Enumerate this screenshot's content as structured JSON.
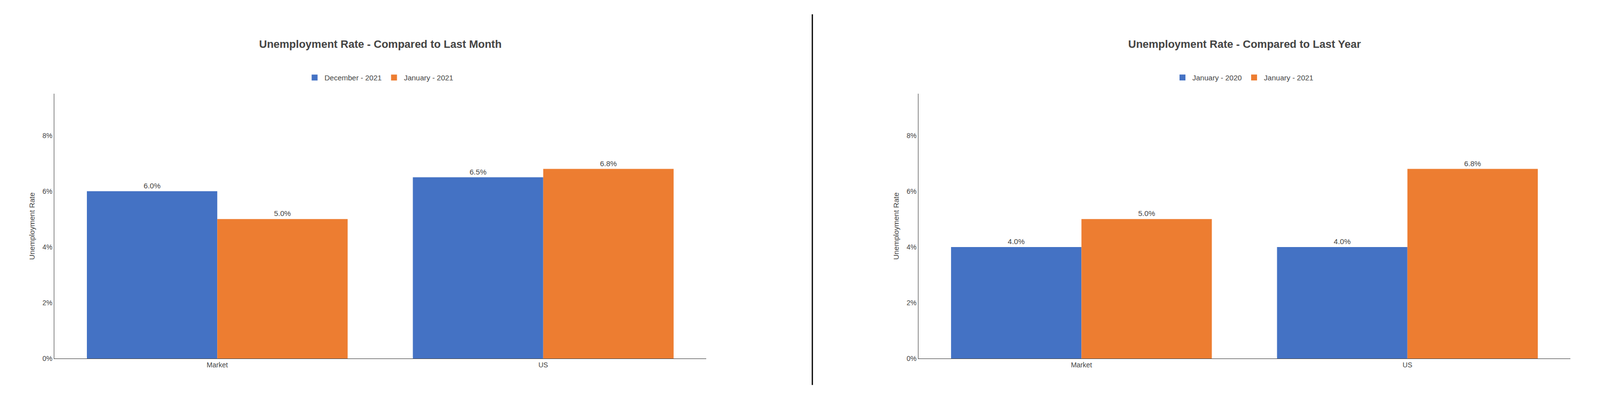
{
  "chart_data": [
    {
      "type": "bar",
      "title": "Unemployment Rate - Compared to Last Month",
      "categories": [
        "Market",
        "US"
      ],
      "series": [
        {
          "name": "December - 2021",
          "color": "#4472C4",
          "values": [
            6.0,
            6.5
          ],
          "value_labels": [
            "6.0%",
            "6.5%"
          ]
        },
        {
          "name": "January - 2021",
          "color": "#ED7D31",
          "values": [
            5.0,
            6.8
          ],
          "value_labels": [
            "5.0%",
            "6.8%"
          ]
        }
      ],
      "ylabel": "Unemployment Rate",
      "ylim": [
        0,
        9.5
      ],
      "yticks": [
        {
          "value": 0,
          "label": "0%"
        },
        {
          "value": 2,
          "label": "2%"
        },
        {
          "value": 4,
          "label": "4%"
        },
        {
          "value": 6,
          "label": "6%"
        },
        {
          "value": 8,
          "label": "8%"
        }
      ],
      "grid": false,
      "data_labels": true,
      "legend": "top"
    },
    {
      "type": "bar",
      "title": "Unemployment Rate - Compared to Last Year",
      "categories": [
        "Market",
        "US"
      ],
      "series": [
        {
          "name": "January - 2020",
          "color": "#4472C4",
          "values": [
            4.0,
            4.0
          ],
          "value_labels": [
            "4.0%",
            "4.0%"
          ]
        },
        {
          "name": "January - 2021",
          "color": "#ED7D31",
          "values": [
            5.0,
            6.8
          ],
          "value_labels": [
            "5.0%",
            "6.8%"
          ]
        }
      ],
      "ylabel": "Unemployment Rate",
      "ylim": [
        0,
        9.5
      ],
      "yticks": [
        {
          "value": 0,
          "label": "0%"
        },
        {
          "value": 2,
          "label": "2%"
        },
        {
          "value": 4,
          "label": "4%"
        },
        {
          "value": 6,
          "label": "6%"
        },
        {
          "value": 8,
          "label": "8%"
        }
      ],
      "grid": false,
      "data_labels": true,
      "legend": "top"
    }
  ]
}
